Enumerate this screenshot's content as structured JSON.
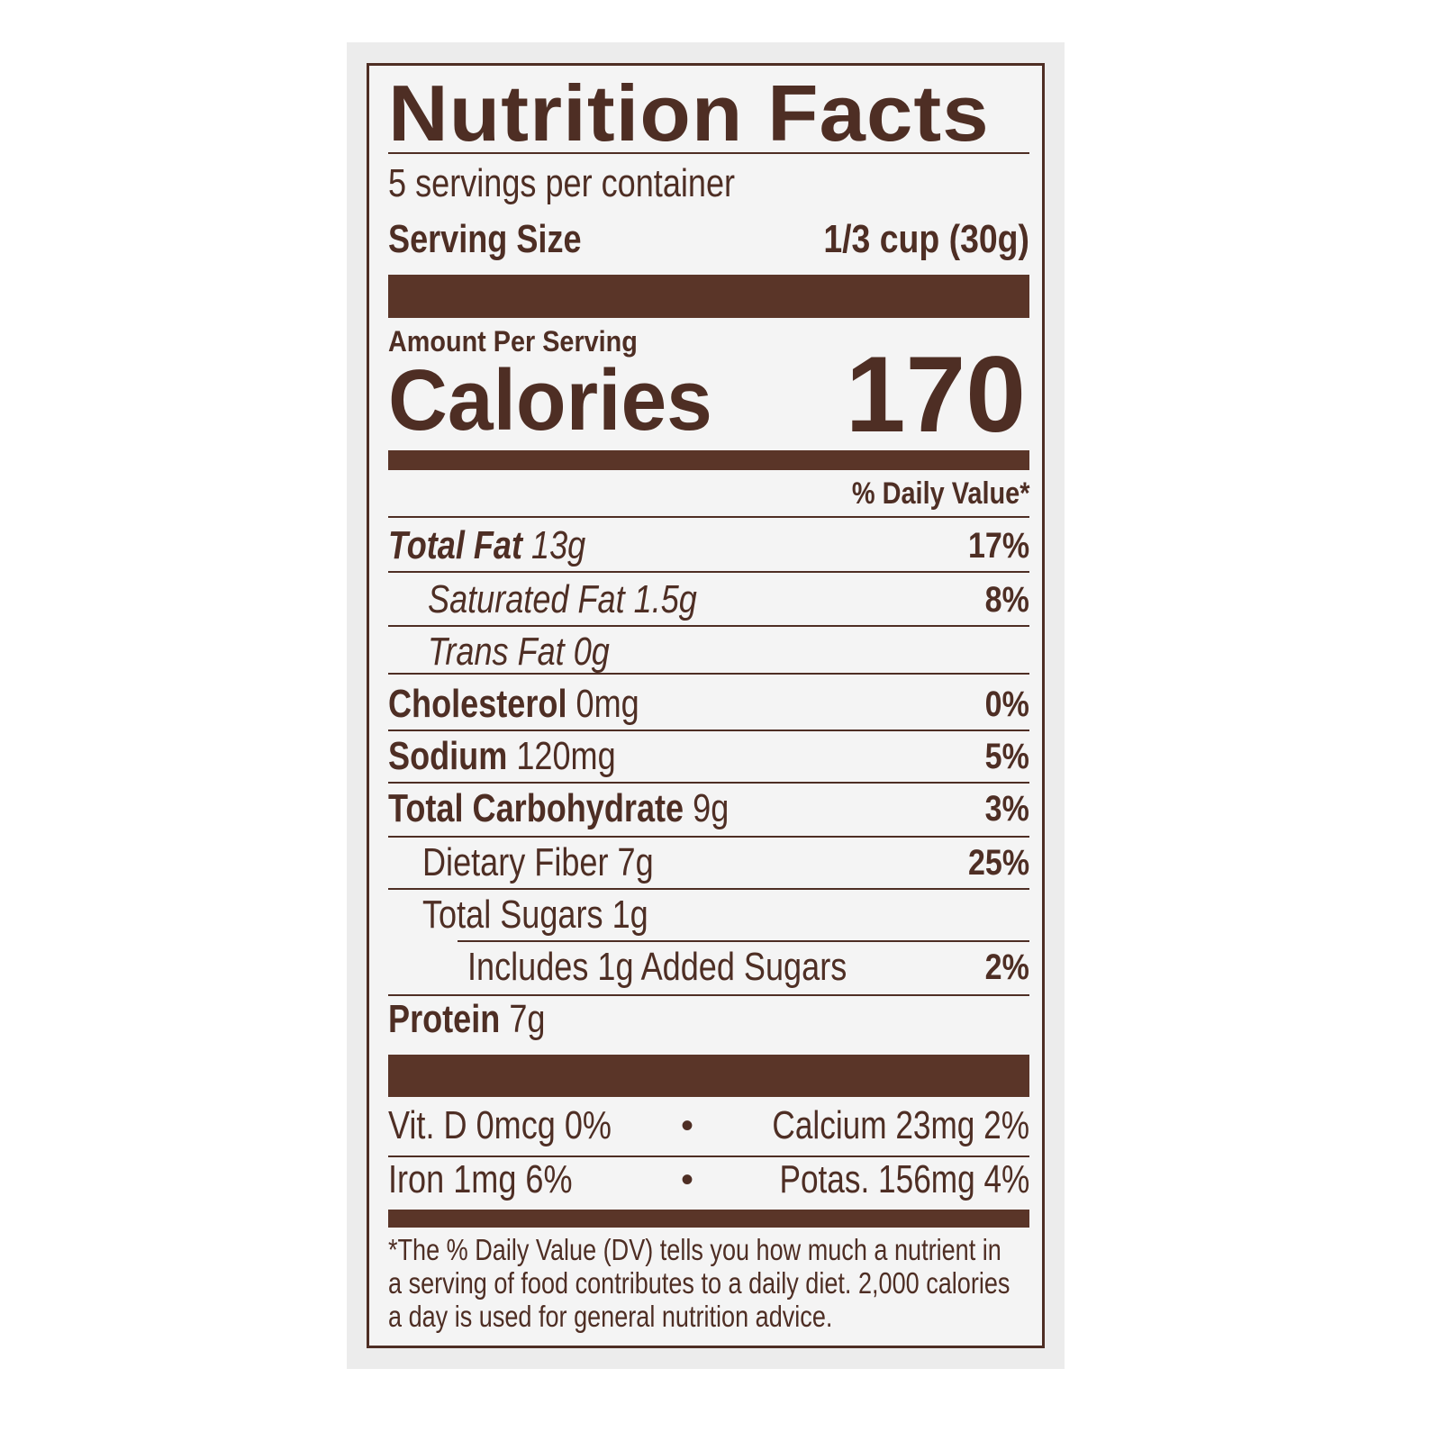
{
  "title": "Nutrition Facts",
  "servings_per_container": "5 servings per container",
  "serving_size": {
    "label": "Serving Size",
    "value": "1/3 cup (30g)"
  },
  "amount_per_serving": "Amount Per Serving",
  "calories": {
    "label": "Calories",
    "value": "170"
  },
  "daily_value_header": "% Daily Value*",
  "nutrients": [
    {
      "name": "Total Fat",
      "amount": "13g",
      "dv": "17%"
    },
    {
      "name": "Saturated Fat",
      "amount": "1.5g",
      "dv": "8%"
    },
    {
      "name": "Trans Fat",
      "amount": "0g",
      "dv": ""
    },
    {
      "name": "Cholesterol",
      "amount": "0mg",
      "dv": "0%"
    },
    {
      "name": "Sodium",
      "amount": "120mg",
      "dv": "5%"
    },
    {
      "name": "Total Carbohydrate",
      "amount": "9g",
      "dv": "3%"
    },
    {
      "name": "Dietary Fiber",
      "amount": "7g",
      "dv": "25%"
    },
    {
      "name": "Total Sugars",
      "amount": "1g",
      "dv": ""
    },
    {
      "name": "Includes 1g Added Sugars",
      "amount": "",
      "dv": "2%"
    },
    {
      "name": "Protein",
      "amount": "7g",
      "dv": ""
    }
  ],
  "vitamins": [
    {
      "left": "Vit. D 0mcg 0%",
      "sep": "•",
      "right": "Calcium 23mg 2%"
    },
    {
      "left": "Iron 1mg 6%",
      "sep": "•",
      "right": "Potas. 156mg 4%"
    }
  ],
  "footnote": "*The % Daily Value (DV) tells you how much a nutrient in a serving of food contributes to a daily diet. 2,000 calories a day is used for general nutrition advice.",
  "colors": {
    "ink": "#4e2e24",
    "background": "#ececec"
  }
}
